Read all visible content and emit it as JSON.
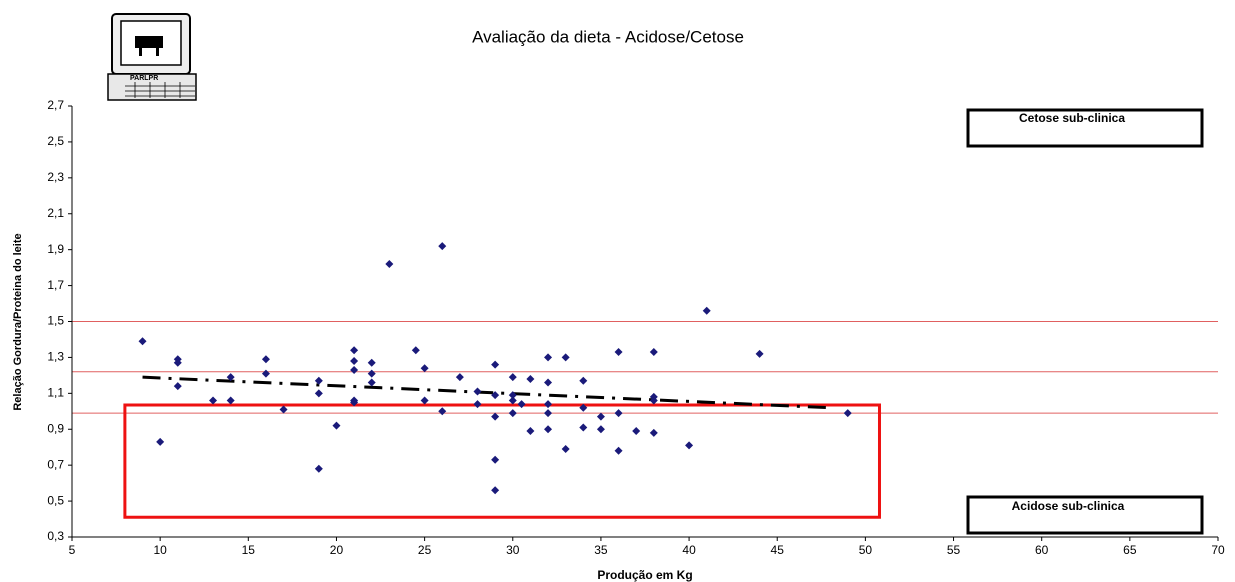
{
  "chart_data": {
    "type": "scatter",
    "title": "Avaliação da dieta - Acidose/Cetose",
    "logo_text": "PARLPR",
    "x_label": "Produção em Kg",
    "y_label": "Relação Gordura/Proteina do leite",
    "color": "#1a1a7a",
    "x": [
      9,
      10,
      11,
      11,
      11,
      13,
      14,
      14,
      16,
      16,
      17,
      19,
      19,
      19,
      20,
      21,
      21,
      21,
      21,
      21,
      22,
      22,
      22,
      23,
      24.5,
      25,
      25,
      26,
      26,
      27,
      28,
      28,
      29,
      29,
      29,
      29,
      29,
      30,
      30,
      30,
      30,
      30.5,
      31,
      31,
      32,
      32,
      32,
      32,
      32,
      33,
      33,
      34,
      34,
      34,
      35,
      35,
      36,
      36,
      36,
      37,
      38,
      38,
      38,
      38,
      40,
      41,
      44,
      49
    ],
    "values": [
      1.39,
      0.83,
      1.29,
      1.27,
      1.14,
      1.06,
      1.19,
      1.06,
      1.29,
      1.21,
      1.01,
      1.17,
      1.1,
      0.68,
      0.92,
      1.34,
      1.28,
      1.23,
      1.06,
      1.05,
      1.27,
      1.21,
      1.16,
      1.82,
      1.34,
      1.24,
      1.06,
      1.92,
      1.0,
      1.19,
      1.11,
      1.04,
      1.26,
      1.09,
      0.97,
      0.73,
      0.56,
      1.19,
      1.09,
      1.06,
      0.99,
      1.04,
      1.18,
      0.89,
      1.3,
      1.16,
      1.04,
      0.99,
      0.9,
      1.3,
      0.79,
      1.17,
      1.02,
      0.91,
      0.97,
      0.9,
      1.33,
      0.99,
      0.78,
      0.89,
      1.33,
      1.08,
      1.06,
      0.88,
      0.81,
      1.56,
      1.32,
      0.99
    ],
    "trendline": {
      "x": [
        9,
        48
      ],
      "values": [
        1.19,
        1.02
      ],
      "color": "#000000"
    },
    "reference_lines": {
      "values": [
        1.5,
        1.22,
        0.99
      ],
      "color": "#e06060"
    },
    "region": {
      "xlim": [
        8,
        50.8
      ],
      "ylim": [
        0.41,
        1.035
      ],
      "color": "#ee1111"
    },
    "annotations": [
      "Cetose sub-clinica",
      "Acidose sub-clinica"
    ],
    "xlim": [
      5,
      70
    ],
    "xticks": [
      5,
      10,
      15,
      20,
      25,
      30,
      35,
      40,
      45,
      50,
      55,
      60,
      65,
      70
    ],
    "ylim": [
      0.3,
      2.7
    ],
    "yticks": [
      {
        "value": 0.3,
        "label": "0,3"
      },
      {
        "value": 0.5,
        "label": "0,5"
      },
      {
        "value": 0.7,
        "label": "0,7"
      },
      {
        "value": 0.9,
        "label": "0,9"
      },
      {
        "value": 1.1,
        "label": "1,1"
      },
      {
        "value": 1.3,
        "label": "1,3"
      },
      {
        "value": 1.5,
        "label": "1,5"
      },
      {
        "value": 1.7,
        "label": "1,7"
      },
      {
        "value": 1.9,
        "label": "1,9"
      },
      {
        "value": 2.1,
        "label": "2,1"
      },
      {
        "value": 2.3,
        "label": "2,3"
      },
      {
        "value": 2.5,
        "label": "2,5"
      },
      {
        "value": 2.7,
        "label": "2,7"
      }
    ]
  }
}
